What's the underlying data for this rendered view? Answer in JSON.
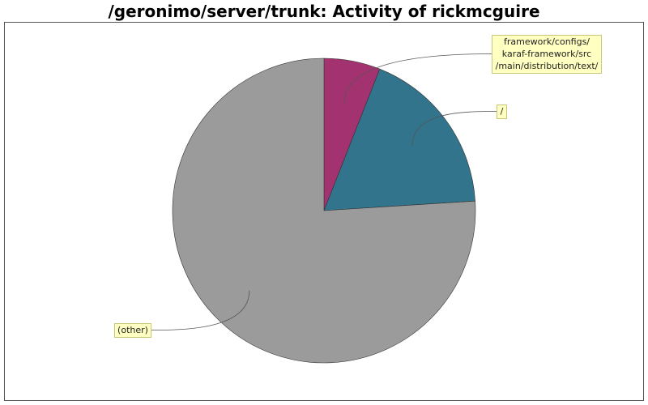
{
  "chart_data": {
    "type": "pie",
    "title": "/geronimo/server/trunk: Activity of rickmcguire",
    "slices": [
      {
        "label": [
          "framework/configs/",
          "karaf-framework/src",
          "/main/distribution/text/"
        ],
        "value": 6,
        "color": "#a23370"
      },
      {
        "label": [
          "/"
        ],
        "value": 18,
        "color": "#31748c"
      },
      {
        "label": [
          "(other)"
        ],
        "value": 76,
        "color": "#9b9b9b"
      }
    ],
    "legend": "none"
  },
  "colors": {
    "label_bg": "#ffffc2",
    "label_border": "#c8c87a",
    "plot_border": "#555555"
  }
}
